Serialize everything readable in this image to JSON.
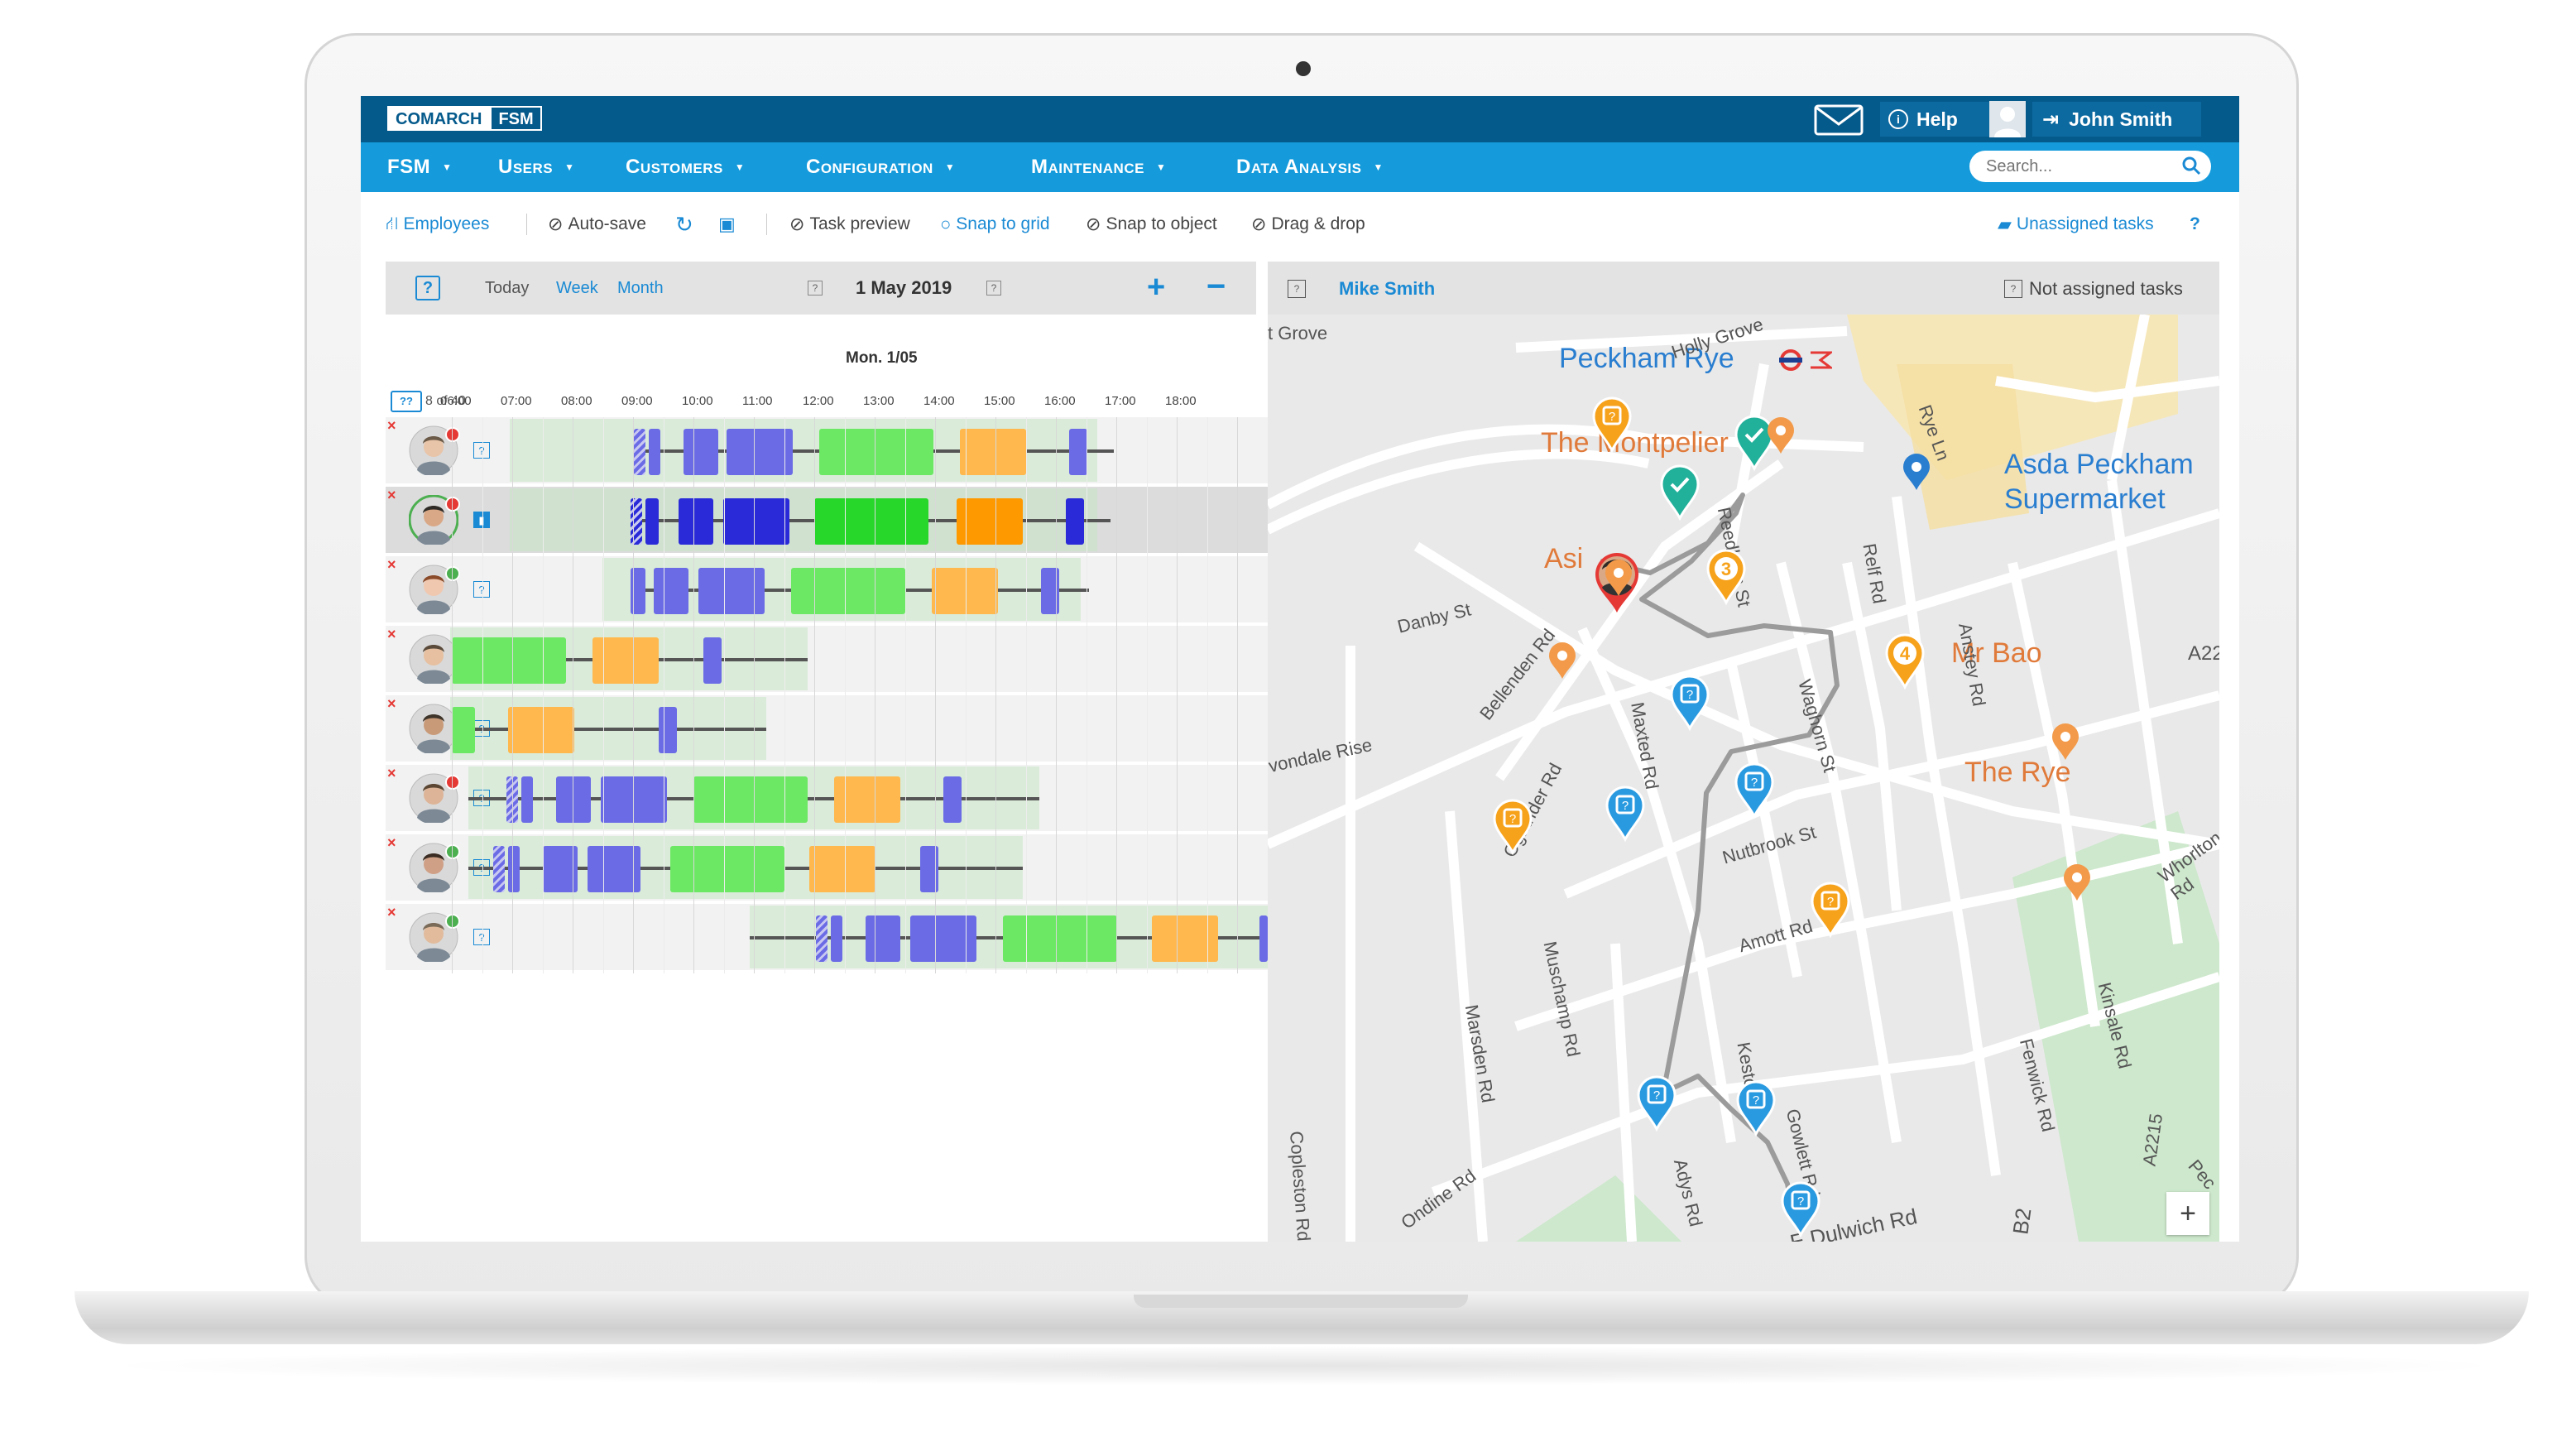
{
  "app": {
    "logo_left": "COMARCH",
    "logo_right": "FSM"
  },
  "topbar": {
    "help": "Help",
    "user_name": "John Smith"
  },
  "nav": [
    {
      "label": "FSM"
    },
    {
      "label": "Users"
    },
    {
      "label": "Customers"
    },
    {
      "label": "Configuration"
    },
    {
      "label": "Maintenance"
    },
    {
      "label": "Data Analysis"
    }
  ],
  "search": {
    "placeholder": "Search..."
  },
  "toolbar": {
    "employees": "Employees",
    "autosave": "Auto-save",
    "task_preview": "Task preview",
    "snap_grid": "Snap to grid",
    "snap_object": "Snap to object",
    "drag_drop": "Drag & drop",
    "unassigned": "Unassigned tasks",
    "help_q": "?"
  },
  "schedule": {
    "today": "Today",
    "week": "Week",
    "month": "Month",
    "date": "1 May 2019",
    "plus": "+",
    "minus": "−",
    "day_label": "Mon. 1/05",
    "count": "8 of 40",
    "hours": [
      "06:00",
      "07:00",
      "08:00",
      "09:00",
      "10:00",
      "11:00",
      "12:00",
      "13:00",
      "14:00",
      "15:00",
      "16:00",
      "17:00",
      "18:00"
    ]
  },
  "map_panel": {
    "person": "Mike Smith",
    "not_assigned": "Not assigned tasks",
    "labels": {
      "peckham_rye": "Peckham Rye",
      "montpelier": "The Montpelier",
      "asda1": "Asda Peckham",
      "asda2": "Supermarket",
      "mrbao": "Mr Bao",
      "therye": "The Rye",
      "asi": "Asi",
      "zoom": "+"
    },
    "streets": {
      "grove": "t Grove",
      "hollygrove": "Holly Grove",
      "ryeln": "Rye Ln",
      "danby": "Danby St",
      "bellenden": "Bellenden Rd",
      "reedham": "Reedham St",
      "anstey": "Anstey Rd",
      "relf": "Relf Rd",
      "avondale": "vondale Rise",
      "oglander": "Oglander Rd",
      "maxted": "Maxted Rd",
      "waghorn": "Waghorn St",
      "nutbrook": "Nutbrook St",
      "amott": "Amott Rd",
      "muschamp": "Muschamp Rd",
      "marsden": "Marsden Rd",
      "keston": "Keston",
      "kinsale": "Kinsale Rd",
      "fenwick": "Fenwick Rd",
      "a2215": "A2215",
      "whorlton": "Whorlton Rd",
      "copleston": "Copleston Rd",
      "ondine": "Ondine Rd",
      "adys": "Adys Rd",
      "gowlett": "Gowlett Rd",
      "dulwich": "E Dulwich Rd",
      "a22": "A22",
      "pec": "Pec",
      "b2": "B2",
      "pin3": "3",
      "pin4": "4"
    }
  },
  "colors": {
    "topbar": "#055a8c",
    "nav": "#159bdc",
    "accent": "#1a8ad4",
    "green": "#6ce864",
    "orange": "#ffb84d",
    "purple": "#6b6be6"
  }
}
